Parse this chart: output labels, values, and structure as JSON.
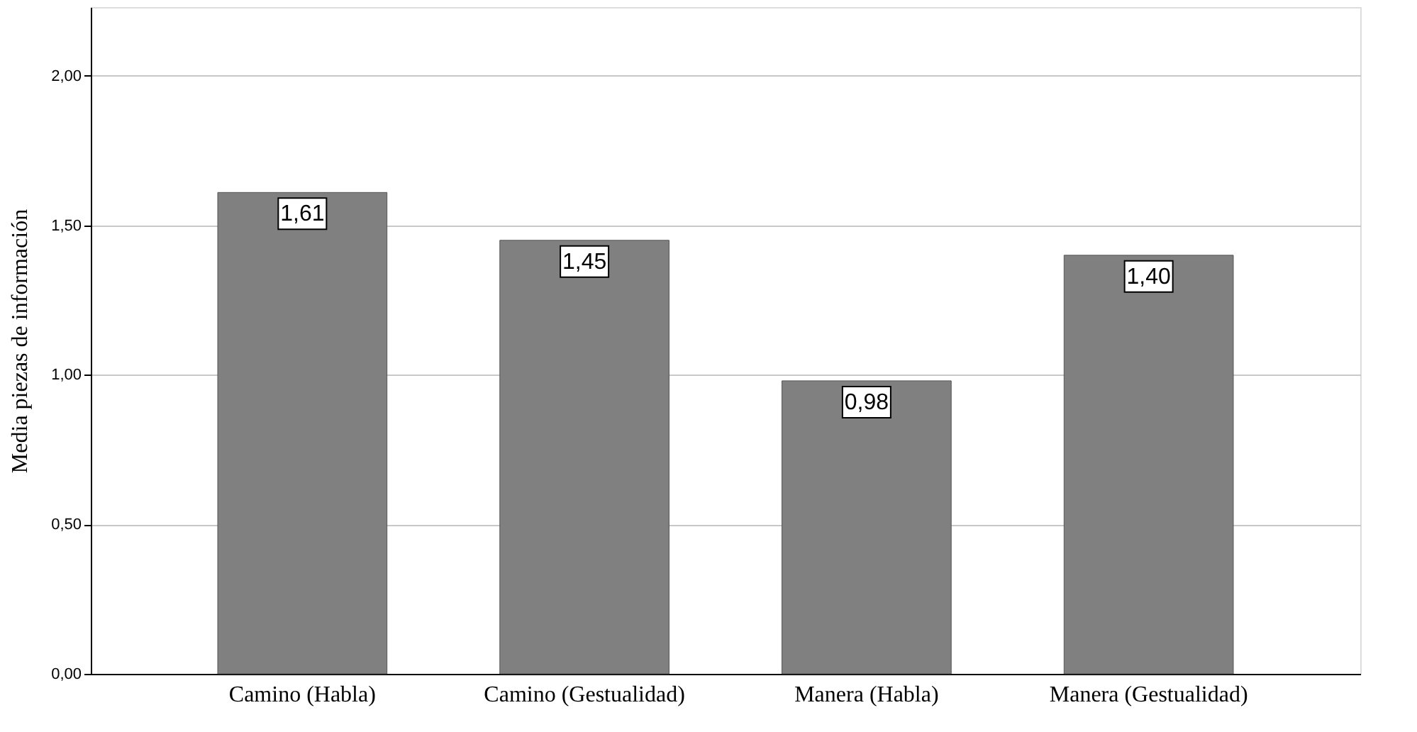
{
  "chart_data": {
    "type": "bar",
    "ylabel": "Media piezas de información",
    "categories": [
      "Camino (Habla)",
      "Camino (Gestualidad)",
      "Manera (Habla)",
      "Manera (Gestualidad)"
    ],
    "values": [
      1.61,
      1.45,
      0.98,
      1.4
    ],
    "color": "#808080",
    "value_labels": [
      "1,61",
      "1,45",
      "0,98",
      "1,40"
    ],
    "ylim": [
      0,
      2.23
    ],
    "yticks": [
      {
        "value": 0,
        "label": "0,00"
      },
      {
        "value": 0.5,
        "label": "0,50"
      },
      {
        "value": 1,
        "label": "1,00"
      },
      {
        "value": 1.5,
        "label": "1,50"
      },
      {
        "value": 2,
        "label": "2,00"
      }
    ],
    "grid": "y"
  }
}
